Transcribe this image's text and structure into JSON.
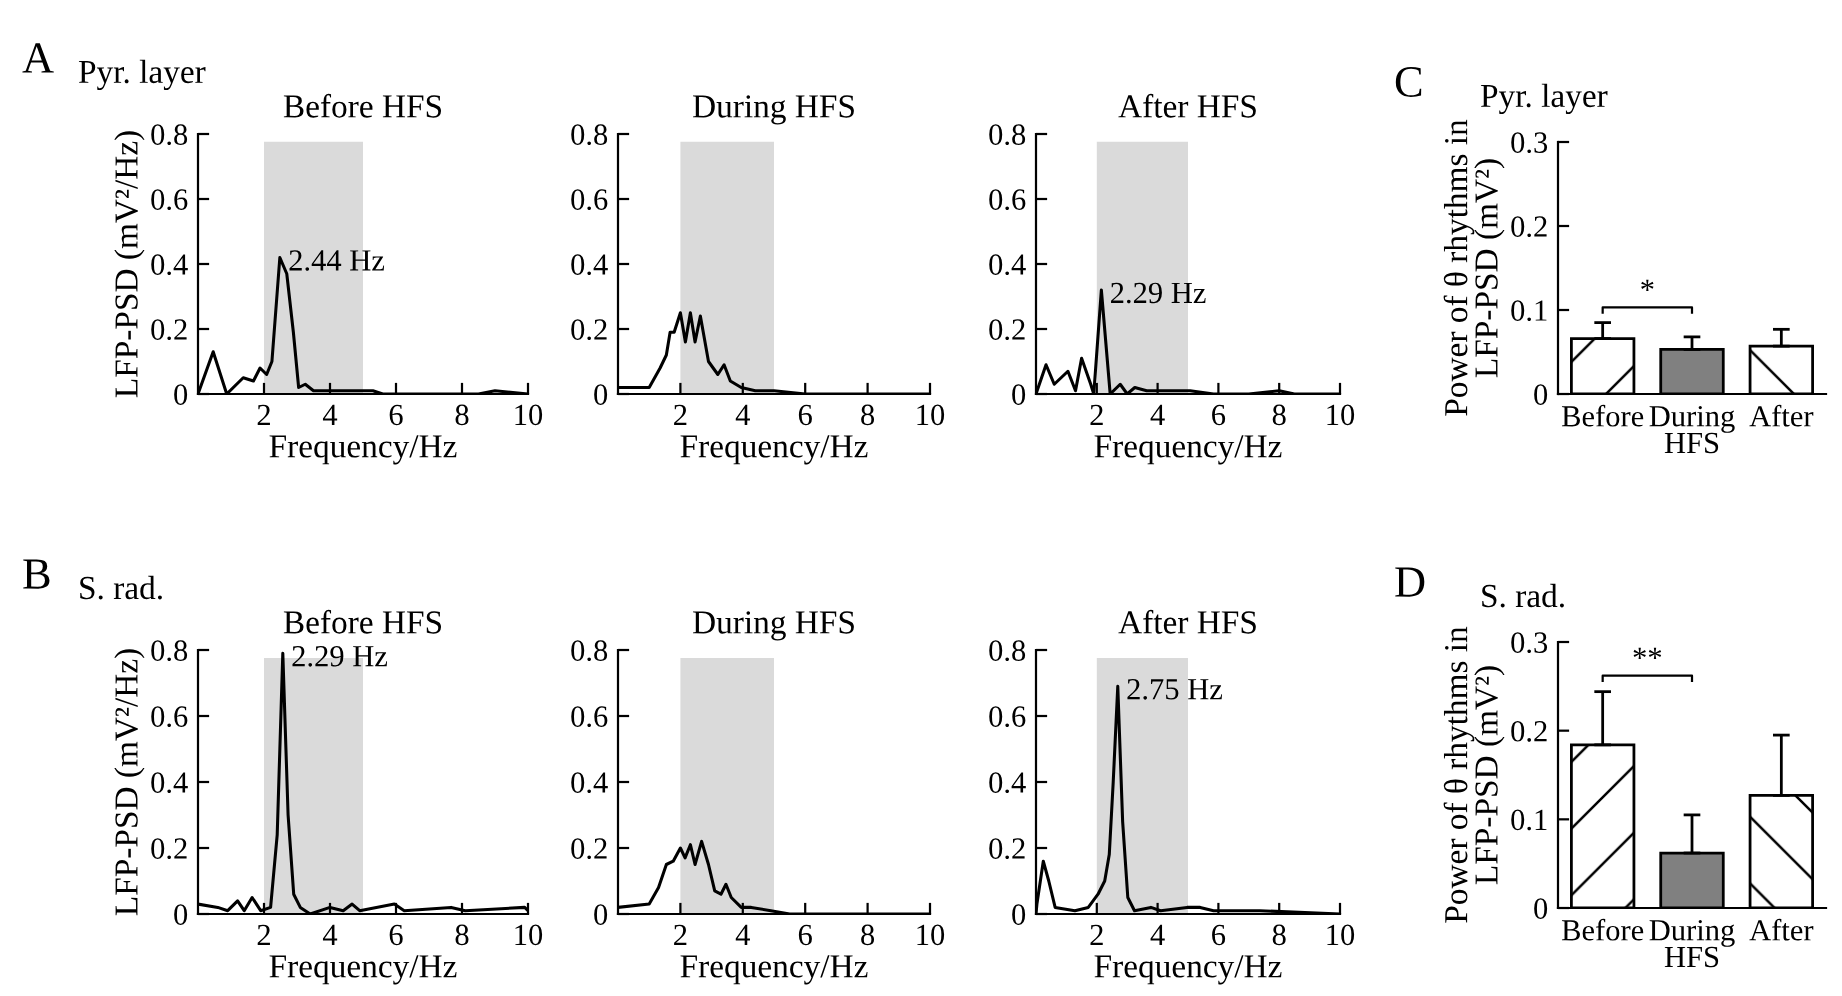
{
  "chart_data": [
    {
      "type": "line",
      "title": "Before HFS",
      "xlabel": "Frequency/Hz",
      "ylabel": "LFP-PSD (mV²/Hz)",
      "xlim": [
        0,
        10
      ],
      "ylim": [
        0,
        0.8
      ],
      "xticks": [
        2,
        4,
        6,
        8,
        10
      ],
      "yticks": [
        0,
        0.2,
        0.4,
        0.6,
        0.8
      ],
      "grid": false,
      "legend": false,
      "bands": [
        {
          "axis": "x",
          "from": 2,
          "to": 5,
          "color": "#dadada"
        }
      ],
      "annotations": [
        "A",
        "Pyr. layer",
        {
          "text": "2.44 Hz",
          "x": 2.48,
          "y": 0.42
        }
      ],
      "series": [
        {
          "color": "#000000",
          "x": [
            0,
            0.46,
            0.87,
            1.37,
            1.68,
            1.88,
            2.08,
            2.24,
            2.48,
            2.69,
            2.89,
            3.05,
            3.25,
            3.5,
            4.0,
            4.5,
            5.0,
            5.3,
            5.6,
            6.5,
            7.5,
            8.5,
            9.0,
            10
          ],
          "values": [
            0,
            0.13,
            0,
            0.05,
            0.04,
            0.08,
            0.06,
            0.1,
            0.42,
            0.37,
            0.19,
            0.02,
            0.03,
            0.01,
            0.01,
            0.01,
            0.01,
            0.01,
            0,
            0,
            0,
            0,
            0.01,
            0
          ]
        }
      ]
    },
    {
      "type": "line",
      "title": "During HFS",
      "xlabel": "Frequency/Hz",
      "xlim": [
        0,
        10
      ],
      "ylim": [
        0,
        0.8
      ],
      "xticks": [
        2,
        4,
        6,
        8,
        10
      ],
      "yticks": [
        0,
        0.2,
        0.4,
        0.6,
        0.8
      ],
      "grid": false,
      "legend": false,
      "bands": [
        {
          "axis": "x",
          "from": 2,
          "to": 5,
          "color": "#dadada"
        }
      ],
      "series": [
        {
          "color": "#000000",
          "x": [
            0,
            0.5,
            1.0,
            1.35,
            1.55,
            1.67,
            1.8,
            2.0,
            2.16,
            2.32,
            2.47,
            2.64,
            2.9,
            3.2,
            3.4,
            3.6,
            3.95,
            4.4,
            5.0,
            6.0,
            8.0,
            10
          ],
          "values": [
            0.02,
            0.02,
            0.02,
            0.08,
            0.12,
            0.19,
            0.19,
            0.25,
            0.16,
            0.25,
            0.16,
            0.24,
            0.1,
            0.06,
            0.09,
            0.04,
            0.02,
            0.01,
            0.01,
            0,
            0,
            0
          ]
        }
      ]
    },
    {
      "type": "line",
      "title": "After HFS",
      "xlabel": "Frequency/Hz",
      "xlim": [
        0,
        10
      ],
      "ylim": [
        0,
        0.8
      ],
      "xticks": [
        2,
        4,
        6,
        8,
        10
      ],
      "yticks": [
        0,
        0.2,
        0.4,
        0.6,
        0.8
      ],
      "grid": false,
      "legend": false,
      "bands": [
        {
          "axis": "x",
          "from": 2,
          "to": 5,
          "color": "#dadada"
        }
      ],
      "annotations": [
        {
          "text": "2.29 Hz",
          "x": 2.15,
          "y": 0.32
        }
      ],
      "series": [
        {
          "color": "#000000",
          "x": [
            0,
            0.33,
            0.6,
            1.05,
            1.3,
            1.5,
            1.8,
            1.9,
            2.15,
            2.44,
            2.77,
            3.0,
            3.25,
            3.64,
            4.5,
            5.07,
            5.84,
            7.0,
            8.0,
            8.5,
            10
          ],
          "values": [
            0,
            0.09,
            0.03,
            0.07,
            0.01,
            0.11,
            0.03,
            0,
            0.32,
            0,
            0.03,
            0,
            0.02,
            0.01,
            0.01,
            0.01,
            0,
            0,
            0.01,
            0,
            0
          ]
        }
      ]
    },
    {
      "type": "bar",
      "ylabel": "Power of θ rhythms in\nLFP-PSD (mV²)",
      "categories": [
        "Before",
        "During\nHFS",
        "After"
      ],
      "values": [
        0.066,
        0.053,
        0.057
      ],
      "colors": [
        "#ffffff",
        "#808080",
        "#ffffff"
      ],
      "errors": [
        [
          0.066,
          0.085
        ],
        [
          0.053,
          0.068
        ],
        [
          0.057,
          0.077
        ]
      ],
      "ylim": [
        0,
        0.3
      ],
      "yticks": [
        0,
        0.1,
        0.2,
        0.3
      ],
      "grid": false,
      "legend": false,
      "annotations": [
        "C",
        "Pyr. layer",
        "*"
      ]
    },
    {
      "type": "line",
      "title": "Before HFS",
      "xlabel": "Frequency/Hz",
      "ylabel": "LFP-PSD (mV²/Hz)",
      "xlim": [
        0,
        10
      ],
      "ylim": [
        0,
        0.8
      ],
      "xticks": [
        2,
        4,
        6,
        8,
        10
      ],
      "yticks": [
        0,
        0.2,
        0.4,
        0.6,
        0.8
      ],
      "grid": false,
      "legend": false,
      "bands": [
        {
          "axis": "x",
          "from": 2,
          "to": 5,
          "color": "#dadada"
        }
      ],
      "annotations": [
        "B",
        "S. rad.",
        {
          "text": "2.29 Hz",
          "x": 2.57,
          "y": 0.79
        }
      ],
      "series": [
        {
          "color": "#000000",
          "x": [
            0,
            0.6,
            0.9,
            1.2,
            1.4,
            1.64,
            1.9,
            2.2,
            2.4,
            2.57,
            2.73,
            2.9,
            3.1,
            3.4,
            4.0,
            4.4,
            4.67,
            4.9,
            5.95,
            6.25,
            7.67,
            8.1,
            9.9,
            10
          ],
          "values": [
            0.03,
            0.02,
            0.01,
            0.04,
            0.01,
            0.05,
            0.01,
            0.02,
            0.24,
            0.79,
            0.3,
            0.06,
            0.02,
            0,
            0.02,
            0.01,
            0.03,
            0.01,
            0.03,
            0.01,
            0.02,
            0.01,
            0.02,
            0.01
          ]
        }
      ]
    },
    {
      "type": "line",
      "title": "During HFS",
      "xlabel": "Frequency/Hz",
      "xlim": [
        0,
        10
      ],
      "ylim": [
        0,
        0.8
      ],
      "xticks": [
        2,
        4,
        6,
        8,
        10
      ],
      "yticks": [
        0,
        0.2,
        0.4,
        0.6,
        0.8
      ],
      "grid": false,
      "legend": false,
      "bands": [
        {
          "axis": "x",
          "from": 2,
          "to": 5,
          "color": "#dadada"
        }
      ],
      "series": [
        {
          "color": "#000000",
          "x": [
            0,
            1.0,
            1.3,
            1.55,
            1.77,
            2.0,
            2.15,
            2.32,
            2.47,
            2.68,
            2.9,
            3.1,
            3.3,
            3.46,
            3.63,
            3.95,
            4.27,
            4.9,
            5.5,
            7.0,
            10
          ],
          "values": [
            0.02,
            0.03,
            0.08,
            0.15,
            0.16,
            0.2,
            0.17,
            0.21,
            0.15,
            0.22,
            0.15,
            0.07,
            0.06,
            0.09,
            0.05,
            0.02,
            0.02,
            0.01,
            0,
            0,
            0
          ]
        }
      ]
    },
    {
      "type": "line",
      "title": "After HFS",
      "xlabel": "Frequency/Hz",
      "xlim": [
        0,
        10
      ],
      "ylim": [
        0,
        0.8
      ],
      "xticks": [
        2,
        4,
        6,
        8,
        10
      ],
      "yticks": [
        0,
        0.2,
        0.4,
        0.6,
        0.8
      ],
      "grid": false,
      "legend": false,
      "bands": [
        {
          "axis": "x",
          "from": 2,
          "to": 5,
          "color": "#dadada"
        }
      ],
      "annotations": [
        {
          "text": "2.75 Hz",
          "x": 2.69,
          "y": 0.69
        }
      ],
      "series": [
        {
          "color": "#000000",
          "x": [
            0,
            0.03,
            0.24,
            0.42,
            0.63,
            1.28,
            1.72,
            2.04,
            2.26,
            2.41,
            2.54,
            2.69,
            2.85,
            3.02,
            3.24,
            3.78,
            4.1,
            4.97,
            5.4,
            5.84,
            7.36,
            10
          ],
          "values": [
            0,
            0.03,
            0.16,
            0.1,
            0.02,
            0.01,
            0.02,
            0.06,
            0.1,
            0.18,
            0.4,
            0.69,
            0.28,
            0.05,
            0.01,
            0.02,
            0.01,
            0.02,
            0.02,
            0.01,
            0.01,
            0
          ]
        }
      ]
    },
    {
      "type": "bar",
      "ylabel": "Power of θ rhythms in\nLFP-PSD (mV²)",
      "categories": [
        "Before",
        "During\nHFS",
        "After"
      ],
      "values": [
        0.184,
        0.062,
        0.127
      ],
      "colors": [
        "#ffffff",
        "#808080",
        "#ffffff"
      ],
      "errors": [
        [
          0.184,
          0.244
        ],
        [
          0.062,
          0.105
        ],
        [
          0.127,
          0.195
        ]
      ],
      "ylim": [
        0,
        0.3
      ],
      "yticks": [
        0,
        0.1,
        0.2,
        0.3
      ],
      "grid": false,
      "legend": false,
      "annotations": [
        "D",
        "S. rad.",
        "**"
      ]
    }
  ]
}
